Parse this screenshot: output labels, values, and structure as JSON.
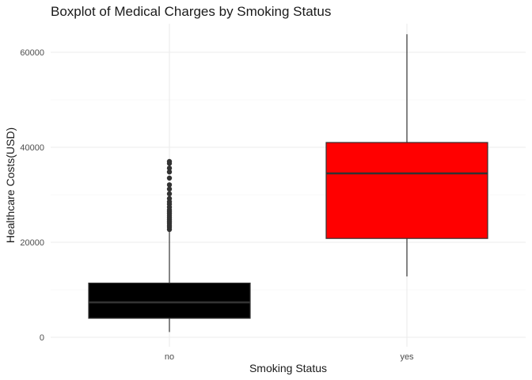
{
  "chart_data": {
    "type": "boxplot",
    "title": "Boxplot of Medical Charges by Smoking Status",
    "xlabel": "Smoking Status",
    "ylabel": "Healthcare Costs(USD)",
    "ylim": [
      -2000,
      66000
    ],
    "yticks": [
      0,
      20000,
      40000,
      60000
    ],
    "yticks_minor": [
      10000,
      30000,
      50000
    ],
    "ytick_labels": [
      "0",
      "20000",
      "40000",
      "60000"
    ],
    "grid": true,
    "legend": "none",
    "categories": [
      "no",
      "yes"
    ],
    "boxes": [
      {
        "category": "no",
        "color": "#000000",
        "median_color": "#333333",
        "whisker_low": 1100,
        "q1": 4000,
        "median": 7350,
        "q3": 11400,
        "whisker_high": 22400,
        "outliers": [
          22700,
          23200,
          23600,
          24000,
          24400,
          24800,
          25200,
          25600,
          26000,
          26400,
          26800,
          27400,
          28000,
          28500,
          29200,
          30200,
          31200,
          32100,
          33500,
          34800,
          35600,
          36600,
          37000
        ]
      },
      {
        "category": "yes",
        "color": "#ff0000",
        "median_color": "#333333",
        "whisker_low": 12800,
        "q1": 20800,
        "median": 34500,
        "q3": 41000,
        "whisker_high": 63800,
        "outliers": []
      }
    ]
  }
}
